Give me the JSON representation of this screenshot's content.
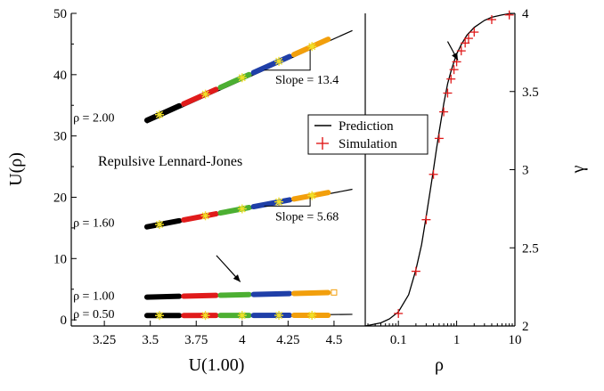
{
  "chart_data": [
    {
      "type": "scatter",
      "panel": "left",
      "title": "Repulsive Lennard-Jones",
      "xlabel": "U(1.00)",
      "ylabel": "U(ρ)",
      "xlim": [
        3.07,
        4.67
      ],
      "ylim": [
        -1,
        50
      ],
      "xticks": [
        "3.25",
        "3.5",
        "3.75",
        "4",
        "4.25",
        "4.5"
      ],
      "xtick_values": [
        3.25,
        3.5,
        3.75,
        4.0,
        4.25,
        4.5
      ],
      "yticks": [
        "0",
        "10",
        "20",
        "30",
        "40",
        "50"
      ],
      "ytick_values": [
        0,
        10,
        20,
        30,
        40,
        50
      ],
      "segment_colors": [
        "#000000",
        "#e01b1b",
        "#4caf32",
        "#1f3fa8",
        "#f29f0c"
      ],
      "segment_edges": [
        3.47,
        3.67,
        3.87,
        4.05,
        4.27,
        4.48
      ],
      "star_color": "#f0e028",
      "series": [
        {
          "label": "ρ = 2.00",
          "line": {
            "x": [
              3.48,
              4.6
            ],
            "y": [
              32.1,
              47.2
            ]
          },
          "points_y0": 32.4,
          "slope": 13.4,
          "stars_x": [
            3.55,
            3.8,
            4.0,
            4.2,
            4.38
          ],
          "label_anchor": [
            3.08,
            33.1
          ]
        },
        {
          "label": "ρ = 1.60",
          "line": {
            "x": [
              3.48,
              4.6
            ],
            "y": [
              14.9,
              21.3
            ]
          },
          "points_y0": 15.1,
          "slope": 5.68,
          "stars_x": [
            3.55,
            3.8,
            4.0,
            4.2,
            4.38
          ],
          "label_anchor": [
            3.08,
            15.9
          ]
        },
        {
          "label": "ρ = 1.00",
          "line": null,
          "points_y0": 3.7,
          "slope": 0.75,
          "stars_x": [],
          "label_anchor": [
            3.08,
            4.0
          ]
        },
        {
          "label": "ρ = 0.50",
          "line": {
            "x": [
              3.48,
              4.6
            ],
            "y": [
              0.5,
              0.9
            ]
          },
          "points_y0": 0.7,
          "slope": 0.05,
          "stars_x": [
            3.55,
            3.8,
            4.0,
            4.2,
            4.38
          ],
          "label_anchor": [
            3.08,
            1.0
          ]
        }
      ],
      "slope_annotations": [
        {
          "text": "Slope = 13.4",
          "at": [
            4.18,
            38.5
          ]
        },
        {
          "text": "Slope = 5.68",
          "at": [
            4.18,
            16.2
          ]
        }
      ],
      "arrow": {
        "from": [
          3.86,
          10.5
        ],
        "to": [
          3.99,
          6.2
        ]
      }
    },
    {
      "type": "line",
      "panel": "right",
      "xlabel": "ρ",
      "ylabel": "γ",
      "xscale": "log",
      "xlim": [
        0.027,
        10
      ],
      "ylim": [
        2.0,
        4.0
      ],
      "xticks": [
        "0.1",
        "1",
        "10"
      ],
      "xtick_values": [
        0.1,
        1,
        10
      ],
      "yticks": [
        "2",
        "2.5",
        "3",
        "3.5",
        "4"
      ],
      "ytick_values": [
        2,
        2.5,
        3,
        3.5,
        4
      ],
      "series": [
        {
          "name": "Prediction",
          "color": "#000000",
          "x": [
            0.027,
            0.05,
            0.07,
            0.1,
            0.15,
            0.2,
            0.25,
            0.3,
            0.35,
            0.4,
            0.45,
            0.5,
            0.6,
            0.7,
            0.8,
            0.9,
            1.0,
            1.2,
            1.5,
            2.0,
            3.0,
            4.0,
            6.0,
            8.0,
            10.0
          ],
          "y": [
            2.0,
            2.02,
            2.045,
            2.09,
            2.2,
            2.36,
            2.52,
            2.7,
            2.86,
            3.0,
            3.13,
            3.24,
            3.42,
            3.55,
            3.63,
            3.69,
            3.74,
            3.8,
            3.86,
            3.91,
            3.955,
            3.975,
            3.99,
            3.998,
            4.0
          ]
        },
        {
          "name": "Simulation",
          "color": "#e01b1b",
          "marker": "+",
          "x": [
            0.1,
            0.2,
            0.3,
            0.4,
            0.5,
            0.6,
            0.7,
            0.8,
            0.9,
            1.0,
            1.2,
            1.4,
            1.6,
            2.0,
            4.0,
            8.0
          ],
          "y": [
            2.08,
            2.35,
            2.68,
            2.97,
            3.2,
            3.37,
            3.49,
            3.58,
            3.64,
            3.69,
            3.76,
            3.81,
            3.84,
            3.88,
            3.96,
            3.99
          ]
        }
      ],
      "arrow": {
        "from": [
          0.7,
          3.82
        ],
        "to": [
          1.05,
          3.7
        ]
      }
    }
  ],
  "legend": {
    "placement": "center",
    "items": [
      {
        "label": "Prediction",
        "symbol": "line",
        "color": "#000000"
      },
      {
        "label": "Simulation",
        "symbol": "plus",
        "color": "#e01b1b"
      }
    ]
  }
}
